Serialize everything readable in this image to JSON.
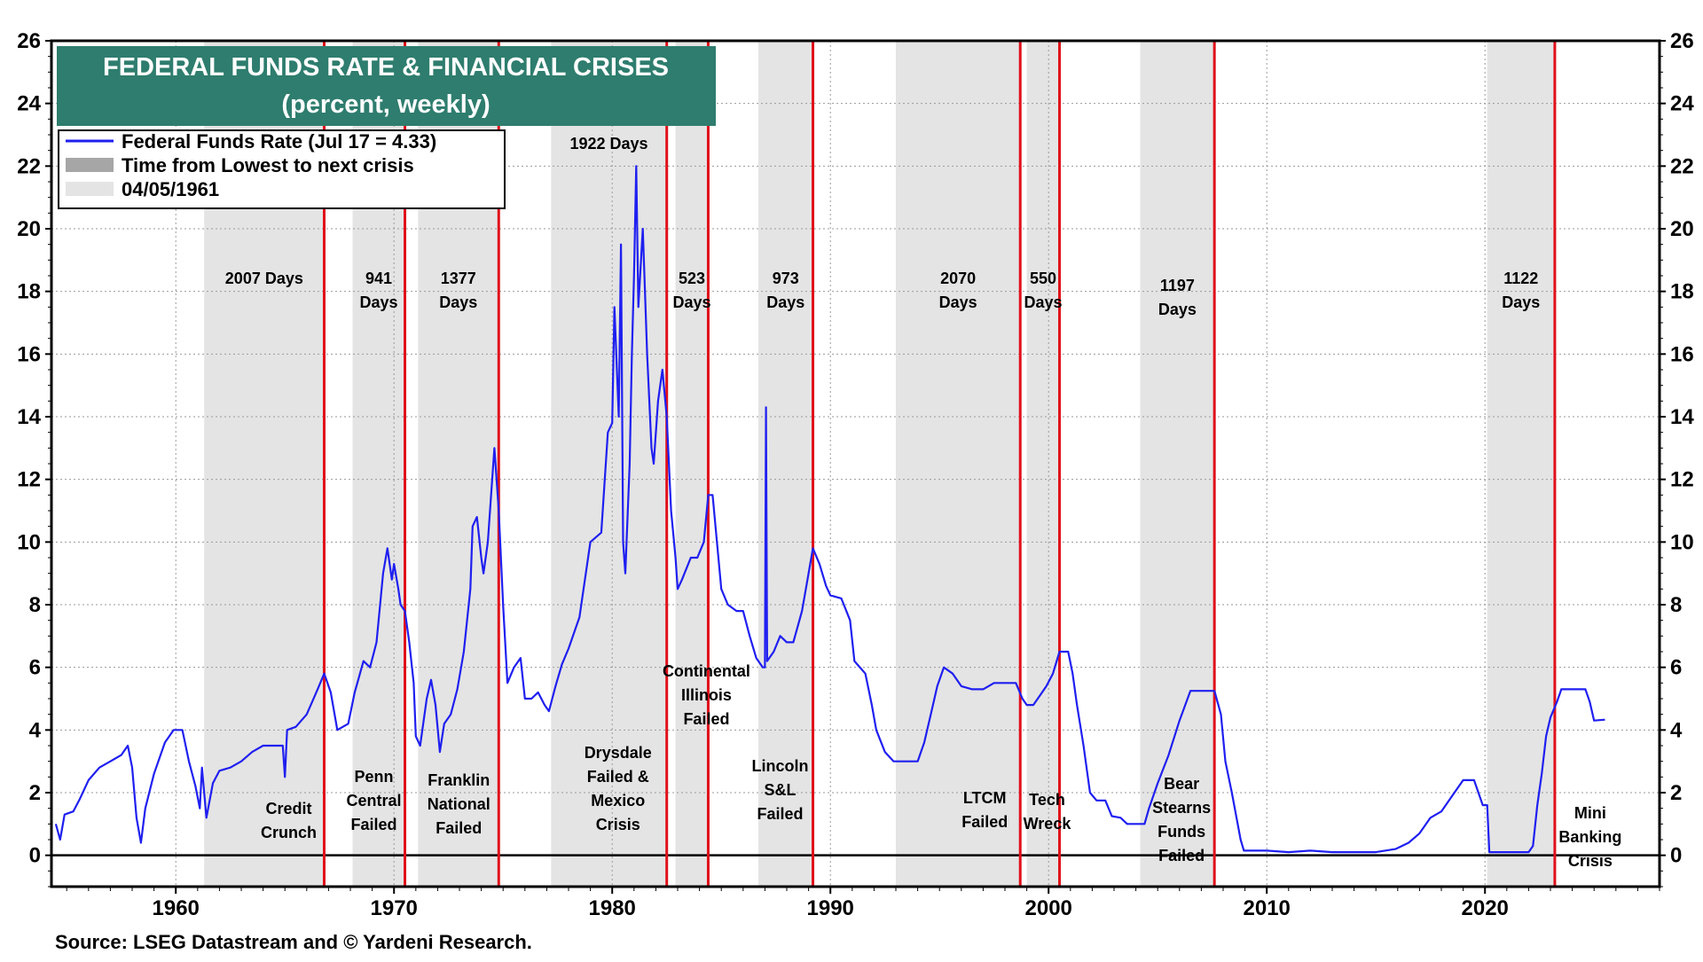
{
  "chart_data": {
    "type": "line",
    "title": "FEDERAL FUNDS RATE & FINANCIAL CRISES",
    "subtitle": "(percent, weekly)",
    "source": "Source: LSEG Datastream and © Yardeni Research.",
    "xlim": [
      1954.3,
      2028.0
    ],
    "ylim": [
      -1,
      26
    ],
    "yticks": [
      0,
      2,
      4,
      6,
      8,
      10,
      12,
      14,
      16,
      18,
      20,
      22,
      24,
      26
    ],
    "xticks": [
      1960,
      1970,
      1980,
      1990,
      2000,
      2010,
      2020
    ],
    "grid": true,
    "legend": {
      "placement": "top-left",
      "entries": [
        {
          "label": "Federal Funds Rate (Jul 17 = 4.33)",
          "color": "#1f1ff0",
          "kind": "line"
        },
        {
          "label": "Time from Lowest to next crisis",
          "color": "#a6a6a6",
          "kind": "box"
        },
        {
          "label": "04/05/1961",
          "color": "#e4e4e4",
          "kind": "box"
        }
      ]
    },
    "colors": {
      "series": "#1f1ff0",
      "crisis_line": "#e0101a",
      "shade": "#e4e4e4",
      "title_bg": "#2e7d6e",
      "zero_line": "#000000"
    },
    "shaded_periods": [
      {
        "start": 1961.3,
        "end": 1966.8,
        "label": "2007 Days"
      },
      {
        "start": 1968.1,
        "end": 1970.5,
        "label": "941 Days"
      },
      {
        "start": 1971.1,
        "end": 1974.8,
        "label": "1377 Days"
      },
      {
        "start": 1977.2,
        "end": 1982.5,
        "label": "1922 Days"
      },
      {
        "start": 1982.9,
        "end": 1984.4,
        "label": "523 Days"
      },
      {
        "start": 1986.7,
        "end": 1989.2,
        "label": "973 Days"
      },
      {
        "start": 1993.0,
        "end": 1998.7,
        "label": "2070 Days"
      },
      {
        "start": 1999.0,
        "end": 2000.5,
        "label": "550 Days"
      },
      {
        "start": 2004.2,
        "end": 2007.6,
        "label": "1197 Days"
      },
      {
        "start": 2020.1,
        "end": 2023.2,
        "label": "1122 Days"
      }
    ],
    "crises": [
      {
        "date": 1966.8,
        "label": "Credit Crunch"
      },
      {
        "date": 1970.5,
        "label": "Penn Central Failed"
      },
      {
        "date": 1974.8,
        "label": "Franklin National Failed"
      },
      {
        "date": 1982.5,
        "label": "Drysdale Failed & Mexico Crisis"
      },
      {
        "date": 1984.4,
        "label": "Continental Illinois Failed"
      },
      {
        "date": 1989.2,
        "label": "Lincoln S&L Failed"
      },
      {
        "date": 1998.7,
        "label": "LTCM Failed"
      },
      {
        "date": 2000.5,
        "label": "Tech Wreck"
      },
      {
        "date": 2007.6,
        "label": "Bear Stearns Funds Failed"
      },
      {
        "date": 2023.2,
        "label": "Mini Banking Crisis"
      }
    ],
    "series": [
      {
        "name": "Federal Funds Rate (Jul 17 = 4.33)",
        "points": [
          [
            1954.5,
            1.0
          ],
          [
            1954.7,
            0.5
          ],
          [
            1954.9,
            1.3
          ],
          [
            1955.3,
            1.4
          ],
          [
            1955.6,
            1.8
          ],
          [
            1956.0,
            2.4
          ],
          [
            1956.5,
            2.8
          ],
          [
            1957.0,
            3.0
          ],
          [
            1957.5,
            3.2
          ],
          [
            1957.8,
            3.5
          ],
          [
            1958.0,
            2.8
          ],
          [
            1958.2,
            1.2
          ],
          [
            1958.4,
            0.4
          ],
          [
            1958.6,
            1.5
          ],
          [
            1959.0,
            2.6
          ],
          [
            1959.5,
            3.6
          ],
          [
            1959.9,
            4.0
          ],
          [
            1960.3,
            4.0
          ],
          [
            1960.6,
            3.0
          ],
          [
            1960.9,
            2.2
          ],
          [
            1961.1,
            1.5
          ],
          [
            1961.2,
            2.8
          ],
          [
            1961.4,
            1.2
          ],
          [
            1961.7,
            2.3
          ],
          [
            1962.0,
            2.7
          ],
          [
            1962.5,
            2.8
          ],
          [
            1963.0,
            3.0
          ],
          [
            1963.5,
            3.3
          ],
          [
            1964.0,
            3.5
          ],
          [
            1964.5,
            3.5
          ],
          [
            1964.9,
            3.5
          ],
          [
            1965.0,
            2.5
          ],
          [
            1965.1,
            4.0
          ],
          [
            1965.5,
            4.1
          ],
          [
            1966.0,
            4.5
          ],
          [
            1966.5,
            5.3
          ],
          [
            1966.8,
            5.8
          ],
          [
            1967.1,
            5.2
          ],
          [
            1967.4,
            4.0
          ],
          [
            1967.9,
            4.2
          ],
          [
            1968.2,
            5.2
          ],
          [
            1968.6,
            6.2
          ],
          [
            1968.9,
            6.0
          ],
          [
            1969.2,
            6.8
          ],
          [
            1969.5,
            9.0
          ],
          [
            1969.7,
            9.8
          ],
          [
            1969.9,
            8.8
          ],
          [
            1970.0,
            9.3
          ],
          [
            1970.2,
            8.5
          ],
          [
            1970.3,
            8.0
          ],
          [
            1970.5,
            7.8
          ],
          [
            1970.7,
            6.8
          ],
          [
            1970.9,
            5.5
          ],
          [
            1971.0,
            3.8
          ],
          [
            1971.2,
            3.5
          ],
          [
            1971.5,
            5.0
          ],
          [
            1971.7,
            5.6
          ],
          [
            1971.9,
            4.8
          ],
          [
            1972.1,
            3.3
          ],
          [
            1972.3,
            4.2
          ],
          [
            1972.6,
            4.5
          ],
          [
            1972.9,
            5.3
          ],
          [
            1973.2,
            6.5
          ],
          [
            1973.5,
            8.5
          ],
          [
            1973.6,
            10.5
          ],
          [
            1973.8,
            10.8
          ],
          [
            1974.0,
            9.5
          ],
          [
            1974.1,
            9.0
          ],
          [
            1974.3,
            10.0
          ],
          [
            1974.5,
            12.0
          ],
          [
            1974.6,
            13.0
          ],
          [
            1974.8,
            11.0
          ],
          [
            1975.0,
            8.0
          ],
          [
            1975.2,
            5.5
          ],
          [
            1975.5,
            6.0
          ],
          [
            1975.8,
            6.3
          ],
          [
            1976.0,
            5.0
          ],
          [
            1976.3,
            5.0
          ],
          [
            1976.6,
            5.2
          ],
          [
            1976.9,
            4.8
          ],
          [
            1977.1,
            4.6
          ],
          [
            1977.4,
            5.4
          ],
          [
            1977.7,
            6.1
          ],
          [
            1978.0,
            6.6
          ],
          [
            1978.5,
            7.6
          ],
          [
            1979.0,
            10.0
          ],
          [
            1979.5,
            10.3
          ],
          [
            1979.8,
            13.5
          ],
          [
            1980.0,
            13.8
          ],
          [
            1980.1,
            17.5
          ],
          [
            1980.3,
            14.0
          ],
          [
            1980.4,
            19.5
          ],
          [
            1980.5,
            10.0
          ],
          [
            1980.6,
            9.0
          ],
          [
            1980.8,
            12.5
          ],
          [
            1980.9,
            16.0
          ],
          [
            1981.0,
            18.5
          ],
          [
            1981.1,
            22.0
          ],
          [
            1981.2,
            17.5
          ],
          [
            1981.4,
            20.0
          ],
          [
            1981.6,
            16.0
          ],
          [
            1981.8,
            13.0
          ],
          [
            1981.9,
            12.5
          ],
          [
            1982.1,
            14.5
          ],
          [
            1982.3,
            15.5
          ],
          [
            1982.5,
            14.0
          ],
          [
            1982.7,
            11.0
          ],
          [
            1982.9,
            9.5
          ],
          [
            1983.0,
            8.5
          ],
          [
            1983.2,
            8.8
          ],
          [
            1983.6,
            9.5
          ],
          [
            1983.9,
            9.5
          ],
          [
            1984.2,
            10.0
          ],
          [
            1984.4,
            11.5
          ],
          [
            1984.6,
            11.5
          ],
          [
            1984.8,
            10.0
          ],
          [
            1985.0,
            8.5
          ],
          [
            1985.3,
            8.0
          ],
          [
            1985.7,
            7.8
          ],
          [
            1986.0,
            7.8
          ],
          [
            1986.3,
            7.0
          ],
          [
            1986.6,
            6.3
          ],
          [
            1986.9,
            6.0
          ],
          [
            1987.0,
            6.0
          ],
          [
            1987.05,
            14.3
          ],
          [
            1987.1,
            6.2
          ],
          [
            1987.4,
            6.5
          ],
          [
            1987.7,
            7.0
          ],
          [
            1988.0,
            6.8
          ],
          [
            1988.3,
            6.8
          ],
          [
            1988.7,
            7.8
          ],
          [
            1989.0,
            9.0
          ],
          [
            1989.2,
            9.8
          ],
          [
            1989.5,
            9.3
          ],
          [
            1989.8,
            8.6
          ],
          [
            1990.0,
            8.3
          ],
          [
            1990.5,
            8.2
          ],
          [
            1990.9,
            7.5
          ],
          [
            1991.1,
            6.2
          ],
          [
            1991.6,
            5.8
          ],
          [
            1991.9,
            4.8
          ],
          [
            1992.1,
            4.0
          ],
          [
            1992.5,
            3.3
          ],
          [
            1992.9,
            3.0
          ],
          [
            1993.3,
            3.0
          ],
          [
            1993.7,
            3.0
          ],
          [
            1994.0,
            3.0
          ],
          [
            1994.3,
            3.6
          ],
          [
            1994.6,
            4.5
          ],
          [
            1994.9,
            5.4
          ],
          [
            1995.2,
            6.0
          ],
          [
            1995.6,
            5.8
          ],
          [
            1996.0,
            5.4
          ],
          [
            1996.5,
            5.3
          ],
          [
            1997.0,
            5.3
          ],
          [
            1997.5,
            5.5
          ],
          [
            1998.0,
            5.5
          ],
          [
            1998.5,
            5.5
          ],
          [
            1998.8,
            5.0
          ],
          [
            1999.0,
            4.8
          ],
          [
            1999.3,
            4.8
          ],
          [
            1999.6,
            5.1
          ],
          [
            1999.9,
            5.4
          ],
          [
            2000.2,
            5.8
          ],
          [
            2000.5,
            6.5
          ],
          [
            2000.9,
            6.5
          ],
          [
            2001.1,
            5.8
          ],
          [
            2001.3,
            4.8
          ],
          [
            2001.6,
            3.5
          ],
          [
            2001.9,
            2.0
          ],
          [
            2002.2,
            1.75
          ],
          [
            2002.6,
            1.75
          ],
          [
            2002.9,
            1.25
          ],
          [
            2003.3,
            1.2
          ],
          [
            2003.6,
            1.0
          ],
          [
            2004.0,
            1.0
          ],
          [
            2004.4,
            1.0
          ],
          [
            2004.6,
            1.5
          ],
          [
            2005.0,
            2.3
          ],
          [
            2005.5,
            3.2
          ],
          [
            2006.0,
            4.3
          ],
          [
            2006.5,
            5.25
          ],
          [
            2007.0,
            5.25
          ],
          [
            2007.6,
            5.25
          ],
          [
            2007.9,
            4.5
          ],
          [
            2008.1,
            3.0
          ],
          [
            2008.4,
            2.0
          ],
          [
            2008.8,
            0.5
          ],
          [
            2008.95,
            0.15
          ],
          [
            2009.5,
            0.15
          ],
          [
            2010.0,
            0.15
          ],
          [
            2011.0,
            0.1
          ],
          [
            2012.0,
            0.15
          ],
          [
            2013.0,
            0.1
          ],
          [
            2014.0,
            0.1
          ],
          [
            2015.0,
            0.1
          ],
          [
            2015.9,
            0.2
          ],
          [
            2016.5,
            0.4
          ],
          [
            2017.0,
            0.7
          ],
          [
            2017.5,
            1.2
          ],
          [
            2018.0,
            1.4
          ],
          [
            2018.5,
            1.9
          ],
          [
            2019.0,
            2.4
          ],
          [
            2019.5,
            2.4
          ],
          [
            2019.9,
            1.6
          ],
          [
            2020.1,
            1.6
          ],
          [
            2020.2,
            0.1
          ],
          [
            2020.5,
            0.1
          ],
          [
            2021.0,
            0.1
          ],
          [
            2021.5,
            0.1
          ],
          [
            2022.0,
            0.1
          ],
          [
            2022.2,
            0.3
          ],
          [
            2022.4,
            1.6
          ],
          [
            2022.6,
            2.6
          ],
          [
            2022.8,
            3.8
          ],
          [
            2023.0,
            4.4
          ],
          [
            2023.3,
            4.9
          ],
          [
            2023.5,
            5.3
          ],
          [
            2024.0,
            5.3
          ],
          [
            2024.6,
            5.3
          ],
          [
            2024.8,
            4.9
          ],
          [
            2025.0,
            4.3
          ],
          [
            2025.5,
            4.33
          ]
        ]
      }
    ]
  }
}
